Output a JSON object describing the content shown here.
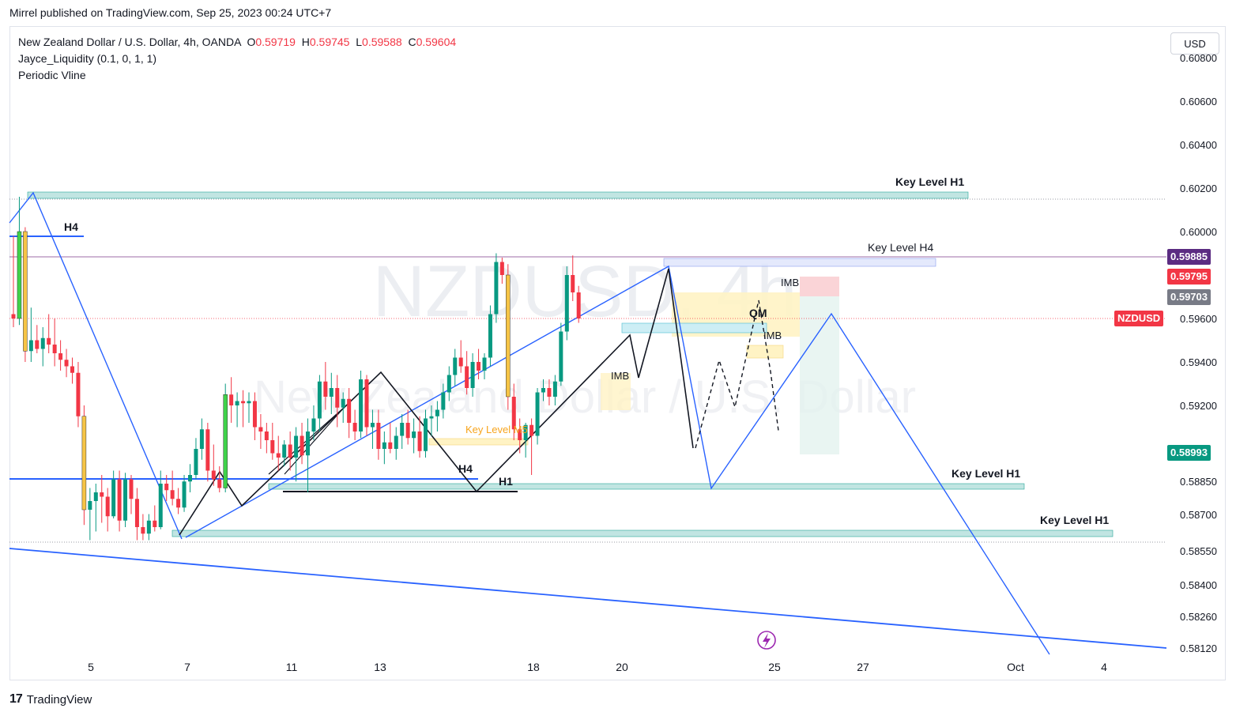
{
  "header": {
    "published": "Mirrel published on TradingView.com, Sep 25, 2023 00:24 UTC+7"
  },
  "legend": {
    "symbol_line": "New Zealand Dollar / U.S. Dollar, 4h, OANDA",
    "o_label": "O",
    "o_value": "0.59719",
    "h_label": "H",
    "h_value": "0.59745",
    "l_label": "L",
    "l_value": "0.59588",
    "c_label": "C",
    "c_value": "0.59604",
    "indicator1": "Jayce_Liquidity (0.1, 0, 1, 1)",
    "indicator2": "Periodic Vline"
  },
  "currency_button": "USD",
  "watermark": {
    "symbol": "NZDUSD, 4h",
    "name": "New Zealand Dollar / U.S. Dollar"
  },
  "price_tags": {
    "line_price": "0.59885",
    "line_color": "#5b2c82",
    "high_price": "0.59795",
    "high_color": "#f23645",
    "mid_price": "0.59703",
    "mid_color": "#787b86",
    "symbol": "NZDUSD",
    "symbol_color": "#f23645",
    "target_price": "0.58993",
    "target_color": "#089981"
  },
  "annotations": {
    "key_level_h1_top": "Key Level H1",
    "key_level_h4": "Key Level H4",
    "key_level_h1_mid": "Key Level H1",
    "key_level_h1_low": "Key Level H1",
    "key_level_m5": "Key Level M5",
    "h4_left": "H4",
    "h4_mid": "H4",
    "h1_mid": "H1",
    "imb_1": "IMB",
    "imb_2": "IMB",
    "imb_3": "IMB",
    "qm": "QM"
  },
  "footer": {
    "brand": "TradingView"
  },
  "chart_data": {
    "type": "candlestick",
    "symbol": "NZDUSD",
    "timeframe": "4h",
    "exchange": "OANDA",
    "y_ticks": [
      "0.60800",
      "0.60600",
      "0.60400",
      "0.60200",
      "0.60000",
      "0.59600",
      "0.59400",
      "0.59200",
      "0.58850",
      "0.58700",
      "0.58550",
      "0.58400",
      "0.58260",
      "0.58120"
    ],
    "x_ticks": [
      "5",
      "7",
      "11",
      "13",
      "18",
      "20",
      "25",
      "27",
      "Oct",
      "4"
    ],
    "ylim": [
      0.5807,
      0.6085
    ],
    "candles": [
      {
        "o": 0.5962,
        "h": 0.5998,
        "l": 0.5956,
        "c": 0.596
      },
      {
        "o": 0.596,
        "h": 0.6016,
        "l": 0.5957,
        "c": 0.6
      },
      {
        "o": 0.6,
        "h": 0.6002,
        "l": 0.594,
        "c": 0.5945
      },
      {
        "o": 0.5945,
        "h": 0.5965,
        "l": 0.594,
        "c": 0.595
      },
      {
        "o": 0.595,
        "h": 0.5957,
        "l": 0.5944,
        "c": 0.5946
      },
      {
        "o": 0.5946,
        "h": 0.5956,
        "l": 0.5938,
        "c": 0.5951
      },
      {
        "o": 0.5951,
        "h": 0.5962,
        "l": 0.5944,
        "c": 0.5948
      },
      {
        "o": 0.5948,
        "h": 0.596,
        "l": 0.5938,
        "c": 0.5944
      },
      {
        "o": 0.5944,
        "h": 0.595,
        "l": 0.5936,
        "c": 0.5941
      },
      {
        "o": 0.5941,
        "h": 0.5946,
        "l": 0.5933,
        "c": 0.5938
      },
      {
        "o": 0.5938,
        "h": 0.5942,
        "l": 0.593,
        "c": 0.5935
      },
      {
        "o": 0.5935,
        "h": 0.594,
        "l": 0.591,
        "c": 0.5915
      },
      {
        "o": 0.5915,
        "h": 0.592,
        "l": 0.5865,
        "c": 0.5872
      },
      {
        "o": 0.5872,
        "h": 0.5882,
        "l": 0.5858,
        "c": 0.5876
      },
      {
        "o": 0.5876,
        "h": 0.5884,
        "l": 0.5862,
        "c": 0.588
      },
      {
        "o": 0.588,
        "h": 0.5888,
        "l": 0.5866,
        "c": 0.5878
      },
      {
        "o": 0.5878,
        "h": 0.5882,
        "l": 0.5862,
        "c": 0.5869
      },
      {
        "o": 0.5869,
        "h": 0.589,
        "l": 0.5868,
        "c": 0.5886
      },
      {
        "o": 0.5886,
        "h": 0.589,
        "l": 0.5862,
        "c": 0.5867
      },
      {
        "o": 0.5867,
        "h": 0.5889,
        "l": 0.5864,
        "c": 0.5886
      },
      {
        "o": 0.5886,
        "h": 0.5888,
        "l": 0.587,
        "c": 0.5877
      },
      {
        "o": 0.5877,
        "h": 0.5882,
        "l": 0.5858,
        "c": 0.5864
      },
      {
        "o": 0.5864,
        "h": 0.587,
        "l": 0.5858,
        "c": 0.5861
      },
      {
        "o": 0.5861,
        "h": 0.587,
        "l": 0.5858,
        "c": 0.5867
      },
      {
        "o": 0.5867,
        "h": 0.5874,
        "l": 0.5862,
        "c": 0.5864
      },
      {
        "o": 0.5864,
        "h": 0.589,
        "l": 0.5863,
        "c": 0.5884
      },
      {
        "o": 0.5884,
        "h": 0.5888,
        "l": 0.5876,
        "c": 0.5881
      },
      {
        "o": 0.5881,
        "h": 0.589,
        "l": 0.5874,
        "c": 0.5877
      },
      {
        "o": 0.5877,
        "h": 0.5882,
        "l": 0.587,
        "c": 0.5873
      },
      {
        "o": 0.5873,
        "h": 0.5888,
        "l": 0.5871,
        "c": 0.5885
      },
      {
        "o": 0.5885,
        "h": 0.5893,
        "l": 0.588,
        "c": 0.5888
      },
      {
        "o": 0.5888,
        "h": 0.5905,
        "l": 0.5886,
        "c": 0.59
      },
      {
        "o": 0.59,
        "h": 0.5914,
        "l": 0.5895,
        "c": 0.5909
      },
      {
        "o": 0.5909,
        "h": 0.5912,
        "l": 0.5885,
        "c": 0.589
      },
      {
        "o": 0.589,
        "h": 0.5902,
        "l": 0.5883,
        "c": 0.5886
      },
      {
        "o": 0.5886,
        "h": 0.5892,
        "l": 0.588,
        "c": 0.5882
      },
      {
        "o": 0.5882,
        "h": 0.593,
        "l": 0.588,
        "c": 0.5925
      },
      {
        "o": 0.5925,
        "h": 0.5933,
        "l": 0.5912,
        "c": 0.592
      },
      {
        "o": 0.592,
        "h": 0.5926,
        "l": 0.591,
        "c": 0.5922
      },
      {
        "o": 0.5922,
        "h": 0.5927,
        "l": 0.591,
        "c": 0.5921
      },
      {
        "o": 0.5921,
        "h": 0.5926,
        "l": 0.5912,
        "c": 0.5922
      },
      {
        "o": 0.5922,
        "h": 0.5926,
        "l": 0.5904,
        "c": 0.591
      },
      {
        "o": 0.591,
        "h": 0.5916,
        "l": 0.59,
        "c": 0.5908
      },
      {
        "o": 0.5908,
        "h": 0.5912,
        "l": 0.5898,
        "c": 0.5904
      },
      {
        "o": 0.5904,
        "h": 0.5912,
        "l": 0.5895,
        "c": 0.5898
      },
      {
        "o": 0.5898,
        "h": 0.5906,
        "l": 0.589,
        "c": 0.5896
      },
      {
        "o": 0.5896,
        "h": 0.5904,
        "l": 0.5892,
        "c": 0.5902
      },
      {
        "o": 0.5902,
        "h": 0.5908,
        "l": 0.589,
        "c": 0.5896
      },
      {
        "o": 0.5896,
        "h": 0.591,
        "l": 0.5885,
        "c": 0.5906
      },
      {
        "o": 0.5906,
        "h": 0.5912,
        "l": 0.5893,
        "c": 0.5897
      },
      {
        "o": 0.5897,
        "h": 0.5914,
        "l": 0.588,
        "c": 0.5908
      },
      {
        "o": 0.5908,
        "h": 0.592,
        "l": 0.5904,
        "c": 0.5914
      },
      {
        "o": 0.5914,
        "h": 0.5934,
        "l": 0.5908,
        "c": 0.5931
      },
      {
        "o": 0.5931,
        "h": 0.594,
        "l": 0.5918,
        "c": 0.5924
      },
      {
        "o": 0.5924,
        "h": 0.5935,
        "l": 0.5916,
        "c": 0.5928
      },
      {
        "o": 0.5928,
        "h": 0.5934,
        "l": 0.591,
        "c": 0.5919
      },
      {
        "o": 0.5919,
        "h": 0.5926,
        "l": 0.5912,
        "c": 0.5923
      },
      {
        "o": 0.5923,
        "h": 0.5928,
        "l": 0.5905,
        "c": 0.5912
      },
      {
        "o": 0.5912,
        "h": 0.5918,
        "l": 0.5904,
        "c": 0.5908
      },
      {
        "o": 0.5908,
        "h": 0.5936,
        "l": 0.5905,
        "c": 0.5932
      },
      {
        "o": 0.5932,
        "h": 0.5934,
        "l": 0.5906,
        "c": 0.591
      },
      {
        "o": 0.591,
        "h": 0.5918,
        "l": 0.59,
        "c": 0.5912
      },
      {
        "o": 0.5912,
        "h": 0.5918,
        "l": 0.5895,
        "c": 0.59
      },
      {
        "o": 0.59,
        "h": 0.5908,
        "l": 0.5893,
        "c": 0.5903
      },
      {
        "o": 0.5903,
        "h": 0.5912,
        "l": 0.5898,
        "c": 0.59
      },
      {
        "o": 0.59,
        "h": 0.591,
        "l": 0.5895,
        "c": 0.5906
      },
      {
        "o": 0.5906,
        "h": 0.5916,
        "l": 0.59,
        "c": 0.5912
      },
      {
        "o": 0.5912,
        "h": 0.5918,
        "l": 0.5902,
        "c": 0.5905
      },
      {
        "o": 0.5905,
        "h": 0.5914,
        "l": 0.5898,
        "c": 0.5908
      },
      {
        "o": 0.5908,
        "h": 0.5915,
        "l": 0.5896,
        "c": 0.5899
      },
      {
        "o": 0.5899,
        "h": 0.5918,
        "l": 0.5896,
        "c": 0.5914
      },
      {
        "o": 0.5914,
        "h": 0.592,
        "l": 0.5906,
        "c": 0.5915
      },
      {
        "o": 0.5915,
        "h": 0.5922,
        "l": 0.5908,
        "c": 0.5918
      },
      {
        "o": 0.5918,
        "h": 0.593,
        "l": 0.5914,
        "c": 0.5926
      },
      {
        "o": 0.5926,
        "h": 0.5938,
        "l": 0.5922,
        "c": 0.5934
      },
      {
        "o": 0.5934,
        "h": 0.5946,
        "l": 0.5929,
        "c": 0.5942
      },
      {
        "o": 0.5942,
        "h": 0.595,
        "l": 0.5935,
        "c": 0.5938
      },
      {
        "o": 0.5938,
        "h": 0.5945,
        "l": 0.5925,
        "c": 0.5928
      },
      {
        "o": 0.5928,
        "h": 0.5944,
        "l": 0.5924,
        "c": 0.594
      },
      {
        "o": 0.594,
        "h": 0.5946,
        "l": 0.5932,
        "c": 0.5936
      },
      {
        "o": 0.5936,
        "h": 0.5944,
        "l": 0.5932,
        "c": 0.5942
      },
      {
        "o": 0.5942,
        "h": 0.5966,
        "l": 0.5938,
        "c": 0.5962
      },
      {
        "o": 0.5962,
        "h": 0.599,
        "l": 0.5958,
        "c": 0.5986
      },
      {
        "o": 0.5986,
        "h": 0.5988,
        "l": 0.5976,
        "c": 0.598
      },
      {
        "o": 0.598,
        "h": 0.5985,
        "l": 0.5918,
        "c": 0.5924
      },
      {
        "o": 0.5924,
        "h": 0.593,
        "l": 0.5904,
        "c": 0.5909
      },
      {
        "o": 0.5909,
        "h": 0.5914,
        "l": 0.5898,
        "c": 0.5904
      },
      {
        "o": 0.5904,
        "h": 0.5912,
        "l": 0.5896,
        "c": 0.5911
      },
      {
        "o": 0.5911,
        "h": 0.5914,
        "l": 0.5888,
        "c": 0.5906
      },
      {
        "o": 0.5906,
        "h": 0.5928,
        "l": 0.5902,
        "c": 0.5926
      },
      {
        "o": 0.5926,
        "h": 0.5932,
        "l": 0.5922,
        "c": 0.5928
      },
      {
        "o": 0.5928,
        "h": 0.5932,
        "l": 0.592,
        "c": 0.5924
      },
      {
        "o": 0.5924,
        "h": 0.5934,
        "l": 0.592,
        "c": 0.5931
      },
      {
        "o": 0.5931,
        "h": 0.5958,
        "l": 0.5929,
        "c": 0.5954
      },
      {
        "o": 0.5954,
        "h": 0.5984,
        "l": 0.595,
        "c": 0.598
      },
      {
        "o": 0.598,
        "h": 0.5989,
        "l": 0.5968,
        "c": 0.5972
      },
      {
        "o": 0.5972,
        "h": 0.5975,
        "l": 0.5958,
        "c": 0.596
      }
    ],
    "horizontal_levels": [
      0.59885,
      0.596
    ],
    "current_price": 0.59604
  }
}
